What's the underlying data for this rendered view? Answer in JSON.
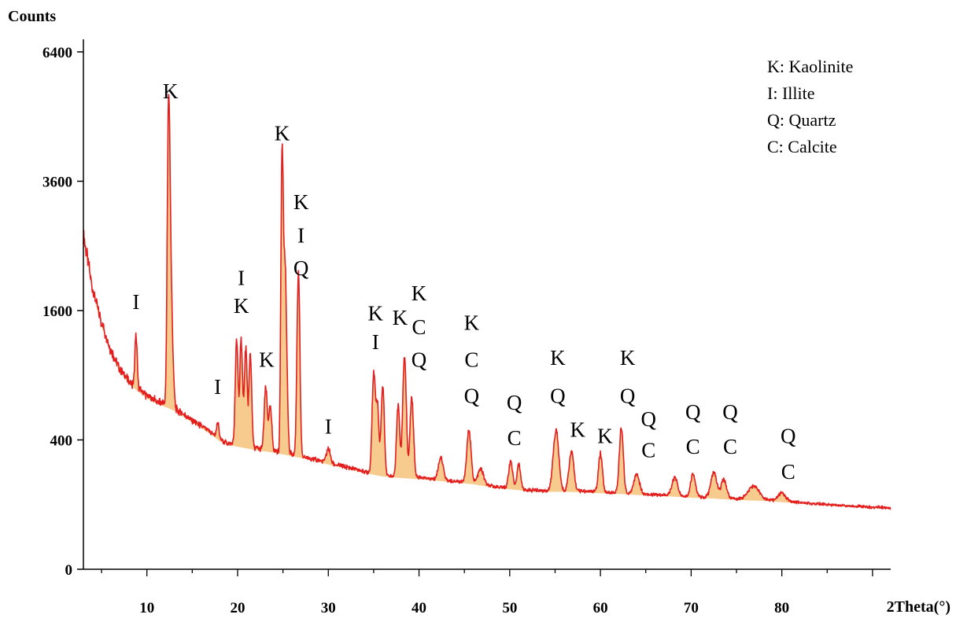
{
  "chart_data": {
    "type": "line",
    "title": "",
    "ylabel": "Counts",
    "xlabel": "2Theta(°)",
    "xlim": [
      3,
      92
    ],
    "ylim": [
      0,
      6400
    ],
    "y_scale": "sqrt",
    "grid": false,
    "legend_position": "top-right",
    "line_color": "#e41e1e",
    "fill_color": "#f0a030",
    "y_ticks": [
      {
        "value": 0,
        "label": "0"
      },
      {
        "value": 400,
        "label": "400"
      },
      {
        "value": 1600,
        "label": "1600"
      },
      {
        "value": 3600,
        "label": "3600"
      },
      {
        "value": 6400,
        "label": "6400"
      }
    ],
    "x_ticks": [
      {
        "value": 10,
        "label": "10"
      },
      {
        "value": 20,
        "label": "20"
      },
      {
        "value": 30,
        "label": "30"
      },
      {
        "value": 40,
        "label": "40"
      },
      {
        "value": 50,
        "label": "50"
      },
      {
        "value": 60,
        "label": "60"
      },
      {
        "value": 70,
        "label": "70"
      },
      {
        "value": 80,
        "label": "80"
      }
    ],
    "legend": [
      "K: Kaolinite",
      "I: Illite",
      "Q: Quartz",
      "C: Calcite"
    ],
    "baseline": [
      [
        3,
        2650
      ],
      [
        4,
        1900
      ],
      [
        5,
        1450
      ],
      [
        6,
        1150
      ],
      [
        7,
        960
      ],
      [
        8,
        850
      ],
      [
        9,
        780
      ],
      [
        10,
        720
      ],
      [
        11,
        680
      ],
      [
        12,
        650
      ],
      [
        13,
        620
      ],
      [
        14,
        575
      ],
      [
        15,
        530
      ],
      [
        16,
        490
      ],
      [
        17,
        450
      ],
      [
        18,
        405
      ],
      [
        19,
        380
      ],
      [
        20,
        370
      ],
      [
        22,
        350
      ],
      [
        24,
        335
      ],
      [
        26,
        315
      ],
      [
        28,
        295
      ],
      [
        30,
        270
      ],
      [
        32,
        250
      ],
      [
        34,
        228
      ],
      [
        36,
        212
      ],
      [
        38,
        205
      ],
      [
        40,
        200
      ],
      [
        42,
        193
      ],
      [
        44,
        185
      ],
      [
        46,
        178
      ],
      [
        48,
        165
      ],
      [
        50,
        158
      ],
      [
        52,
        150
      ],
      [
        54,
        148
      ],
      [
        56,
        148
      ],
      [
        58,
        146
      ],
      [
        60,
        142
      ],
      [
        62,
        140
      ],
      [
        64,
        136
      ],
      [
        66,
        133
      ],
      [
        68,
        130
      ],
      [
        70,
        126
      ],
      [
        72,
        124
      ],
      [
        74,
        120
      ],
      [
        76,
        117
      ],
      [
        78,
        115
      ],
      [
        80,
        111
      ],
      [
        82,
        106
      ],
      [
        84,
        102
      ],
      [
        86,
        98
      ],
      [
        88,
        95
      ],
      [
        90,
        92
      ],
      [
        92,
        90
      ]
    ],
    "peaks": [
      {
        "x": 8.8,
        "y": 1300,
        "w": 0.12
      },
      {
        "x": 12.4,
        "y": 4600,
        "w": 0.13
      },
      {
        "x": 12.6,
        "y": 2000,
        "w": 0.2
      },
      {
        "x": 17.8,
        "y": 520,
        "w": 0.12
      },
      {
        "x": 19.9,
        "y": 1250,
        "w": 0.14
      },
      {
        "x": 20.4,
        "y": 1250,
        "w": 0.14
      },
      {
        "x": 20.9,
        "y": 1150,
        "w": 0.14
      },
      {
        "x": 21.4,
        "y": 1100,
        "w": 0.14
      },
      {
        "x": 23.1,
        "y": 780,
        "w": 0.16
      },
      {
        "x": 23.6,
        "y": 620,
        "w": 0.16
      },
      {
        "x": 24.9,
        "y": 3900,
        "w": 0.11
      },
      {
        "x": 25.2,
        "y": 2300,
        "w": 0.18
      },
      {
        "x": 26.7,
        "y": 2100,
        "w": 0.14
      },
      {
        "x": 30.0,
        "y": 350,
        "w": 0.2
      },
      {
        "x": 35.0,
        "y": 900,
        "w": 0.16
      },
      {
        "x": 35.4,
        "y": 650,
        "w": 0.16
      },
      {
        "x": 36.0,
        "y": 800,
        "w": 0.16
      },
      {
        "x": 37.7,
        "y": 650,
        "w": 0.16
      },
      {
        "x": 38.4,
        "y": 1080,
        "w": 0.18
      },
      {
        "x": 39.2,
        "y": 700,
        "w": 0.18
      },
      {
        "x": 42.4,
        "y": 300,
        "w": 0.25
      },
      {
        "x": 45.5,
        "y": 460,
        "w": 0.22
      },
      {
        "x": 46.8,
        "y": 240,
        "w": 0.3
      },
      {
        "x": 50.1,
        "y": 280,
        "w": 0.2
      },
      {
        "x": 51.0,
        "y": 260,
        "w": 0.2
      },
      {
        "x": 55.1,
        "y": 460,
        "w": 0.28
      },
      {
        "x": 56.8,
        "y": 330,
        "w": 0.25
      },
      {
        "x": 60.0,
        "y": 320,
        "w": 0.2
      },
      {
        "x": 62.3,
        "y": 470,
        "w": 0.2
      },
      {
        "x": 64.0,
        "y": 215,
        "w": 0.3
      },
      {
        "x": 68.2,
        "y": 200,
        "w": 0.3
      },
      {
        "x": 70.2,
        "y": 220,
        "w": 0.25
      },
      {
        "x": 72.5,
        "y": 225,
        "w": 0.3
      },
      {
        "x": 73.6,
        "y": 190,
        "w": 0.3
      },
      {
        "x": 76.9,
        "y": 165,
        "w": 0.6
      },
      {
        "x": 80.0,
        "y": 140,
        "w": 0.4
      }
    ],
    "annotations": [
      {
        "x": 8.8,
        "y": 1620,
        "text": "I"
      },
      {
        "x": 12.6,
        "y": 5300,
        "text": "K"
      },
      {
        "x": 17.8,
        "y": 735,
        "text": "I"
      },
      {
        "x": 20.4,
        "y": 1930,
        "text": "I"
      },
      {
        "x": 20.4,
        "y": 1570,
        "text": "K"
      },
      {
        "x": 23.2,
        "y": 980,
        "text": "K"
      },
      {
        "x": 24.9,
        "y": 4400,
        "text": "K"
      },
      {
        "x": 27.0,
        "y": 3100,
        "text": "K"
      },
      {
        "x": 27.0,
        "y": 2550,
        "text": "I"
      },
      {
        "x": 27.0,
        "y": 2070,
        "text": "Q"
      },
      {
        "x": 30.0,
        "y": 440,
        "text": "I"
      },
      {
        "x": 35.2,
        "y": 1480,
        "text": "K"
      },
      {
        "x": 35.2,
        "y": 1160,
        "text": "I"
      },
      {
        "x": 37.9,
        "y": 1430,
        "text": "K"
      },
      {
        "x": 40.0,
        "y": 1730,
        "text": "K"
      },
      {
        "x": 40.0,
        "y": 1320,
        "text": "C"
      },
      {
        "x": 40.0,
        "y": 980,
        "text": "Q"
      },
      {
        "x": 45.8,
        "y": 1370,
        "text": "K"
      },
      {
        "x": 45.8,
        "y": 980,
        "text": "C"
      },
      {
        "x": 45.8,
        "y": 660,
        "text": "Q"
      },
      {
        "x": 50.5,
        "y": 610,
        "text": "Q"
      },
      {
        "x": 50.5,
        "y": 370,
        "text": "C"
      },
      {
        "x": 55.3,
        "y": 1000,
        "text": "K"
      },
      {
        "x": 55.3,
        "y": 660,
        "text": "Q"
      },
      {
        "x": 57.5,
        "y": 420,
        "text": "K"
      },
      {
        "x": 60.5,
        "y": 380,
        "text": "K"
      },
      {
        "x": 63.0,
        "y": 1000,
        "text": "K"
      },
      {
        "x": 63.0,
        "y": 660,
        "text": "Q"
      },
      {
        "x": 65.3,
        "y": 490,
        "text": "Q"
      },
      {
        "x": 65.3,
        "y": 300,
        "text": "C"
      },
      {
        "x": 70.2,
        "y": 540,
        "text": "Q"
      },
      {
        "x": 70.2,
        "y": 320,
        "text": "C"
      },
      {
        "x": 74.3,
        "y": 540,
        "text": "Q"
      },
      {
        "x": 74.3,
        "y": 320,
        "text": "C"
      },
      {
        "x": 80.7,
        "y": 380,
        "text": "Q"
      },
      {
        "x": 80.7,
        "y": 195,
        "text": "C"
      }
    ]
  }
}
